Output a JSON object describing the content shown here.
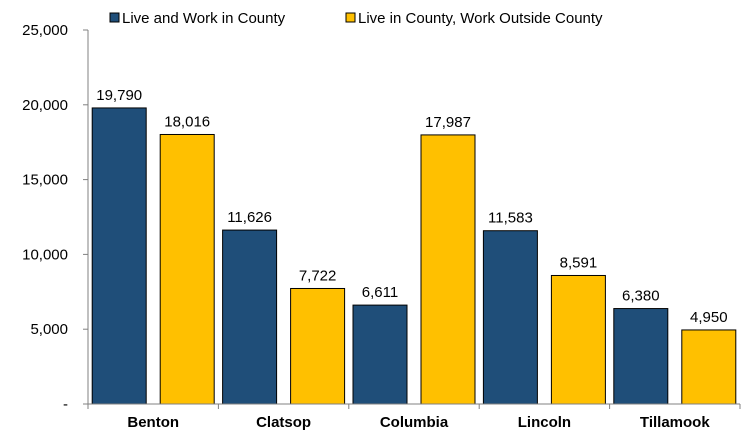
{
  "chart_data": {
    "type": "bar",
    "categories": [
      "Benton",
      "Clatsop",
      "Columbia",
      "Lincoln",
      "Tillamook"
    ],
    "series": [
      {
        "name": "Live and Work in County",
        "color": "#1f4e79",
        "values": [
          19790,
          11626,
          6611,
          11583,
          6380
        ],
        "labels": [
          "19,790",
          "11,626",
          "6,611",
          "11,583",
          "6,380"
        ]
      },
      {
        "name": "Live in County, Work Outside County",
        "color": "#ffc000",
        "values": [
          18016,
          7722,
          17987,
          8591,
          4950
        ],
        "labels": [
          "18,016",
          "7,722",
          "17,987",
          "8,591",
          "4,950"
        ]
      }
    ],
    "ylim": [
      0,
      25000
    ],
    "yticks": [
      {
        "value": 0,
        "label": "-"
      },
      {
        "value": 5000,
        "label": "5,000"
      },
      {
        "value": 10000,
        "label": "10,000"
      },
      {
        "value": 15000,
        "label": "15,000"
      },
      {
        "value": 20000,
        "label": "20,000"
      },
      {
        "value": 25000,
        "label": "25,000"
      }
    ],
    "legend_position": "top",
    "grid": false
  }
}
